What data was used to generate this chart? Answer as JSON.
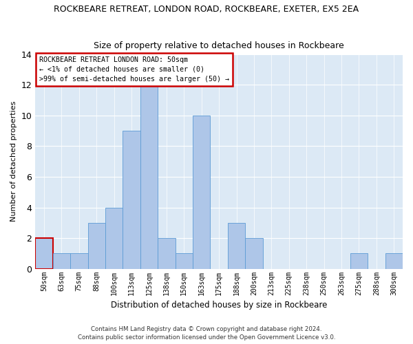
{
  "title": "ROCKBEARE RETREAT, LONDON ROAD, ROCKBEARE, EXETER, EX5 2EA",
  "subtitle": "Size of property relative to detached houses in Rockbeare",
  "xlabel": "Distribution of detached houses by size in Rockbeare",
  "ylabel": "Number of detached properties",
  "bar_color": "#aec6e8",
  "bar_edge_color": "#5b9bd5",
  "background_color": "#dce9f5",
  "categories": [
    "50sqm",
    "63sqm",
    "75sqm",
    "88sqm",
    "100sqm",
    "113sqm",
    "125sqm",
    "138sqm",
    "150sqm",
    "163sqm",
    "175sqm",
    "188sqm",
    "200sqm",
    "213sqm",
    "225sqm",
    "238sqm",
    "250sqm",
    "263sqm",
    "275sqm",
    "288sqm",
    "300sqm"
  ],
  "values": [
    2,
    1,
    1,
    3,
    4,
    9,
    12,
    2,
    1,
    10,
    0,
    3,
    2,
    0,
    0,
    0,
    0,
    0,
    1,
    0,
    1
  ],
  "ylim": [
    0,
    14
  ],
  "yticks": [
    0,
    2,
    4,
    6,
    8,
    10,
    12,
    14
  ],
  "annotation_title": "ROCKBEARE RETREAT LONDON ROAD: 50sqm",
  "annotation_line1": "← <1% of detached houses are smaller (0)",
  "annotation_line2": ">99% of semi-detached houses are larger (50) →",
  "annotation_box_color": "#ffffff",
  "annotation_border_color": "#cc0000",
  "highlight_bar_index": 0,
  "highlight_bar_edge_color": "#cc0000",
  "footer1": "Contains HM Land Registry data © Crown copyright and database right 2024.",
  "footer2": "Contains public sector information licensed under the Open Government Licence v3.0."
}
